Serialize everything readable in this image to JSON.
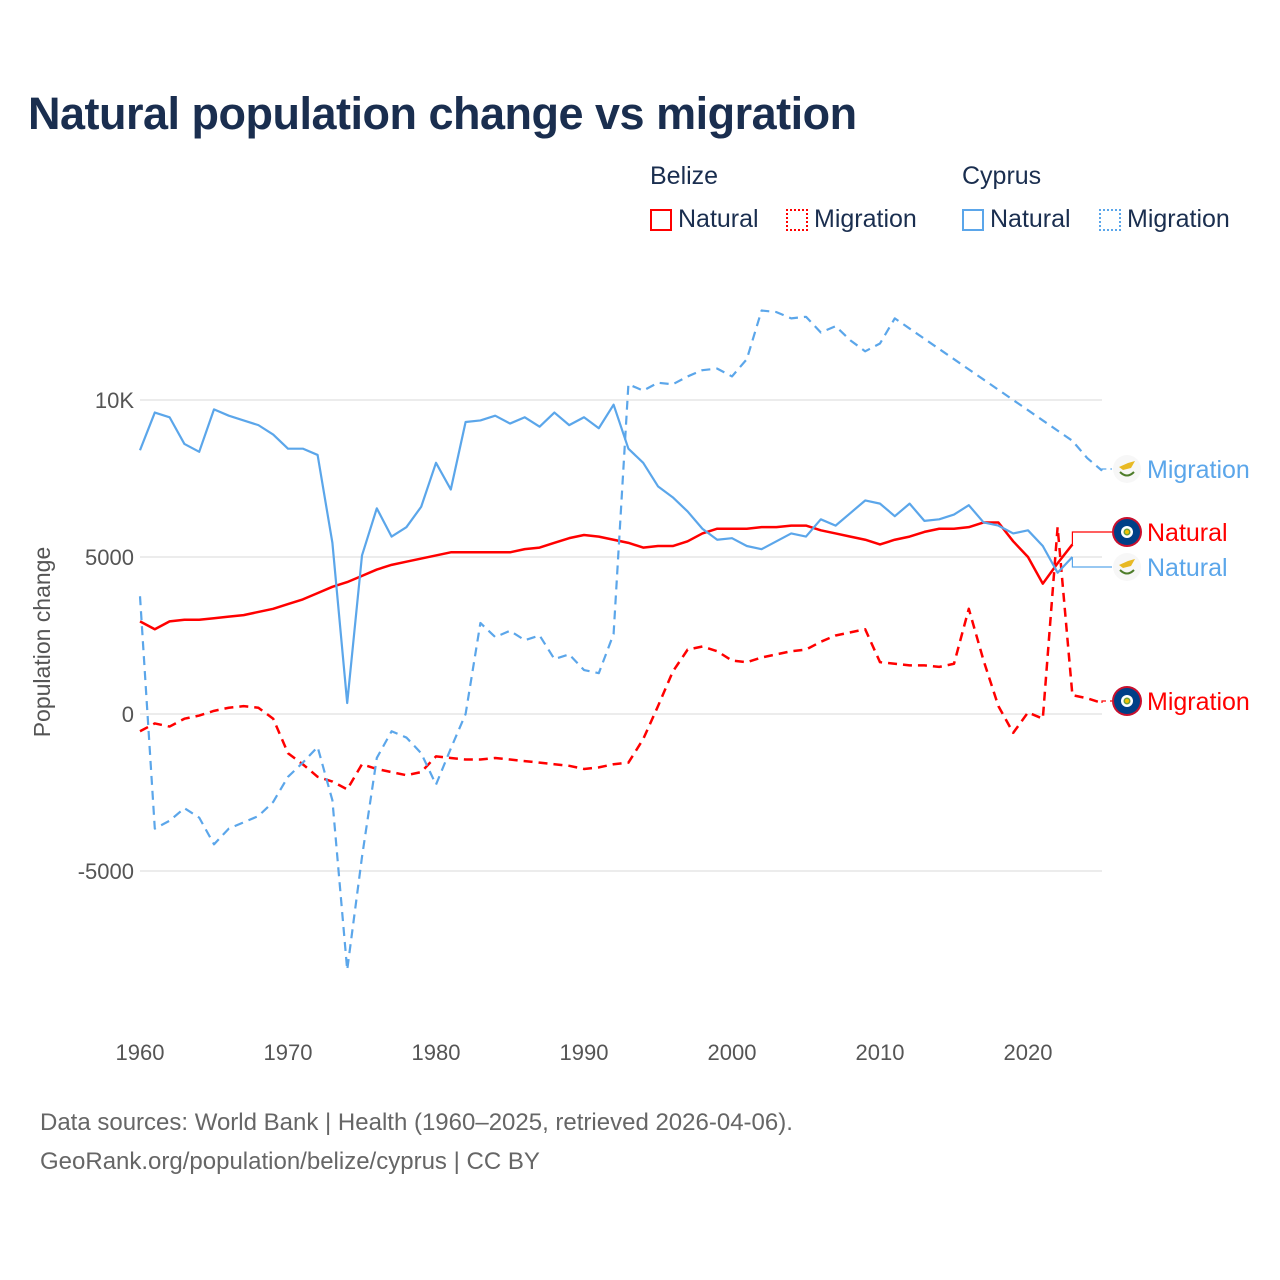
{
  "title": "Natural population change vs migration",
  "legend": {
    "groups": [
      {
        "country": "Belize",
        "items": [
          "Natural",
          "Migration"
        ]
      },
      {
        "country": "Cyprus",
        "items": [
          "Natural",
          "Migration"
        ]
      }
    ]
  },
  "footer": {
    "line1": "Data sources: World Bank | Health (1960–2025, retrieved 2026-04-06).",
    "line2": "GeoRank.org/population/belize/cyprus | CC BY"
  },
  "colors": {
    "belize": "#ff0000",
    "cyprus": "#5ba6ea"
  },
  "chart_data": {
    "type": "line",
    "title": "Natural population change vs migration",
    "xlabel": "",
    "ylabel": "Population change",
    "xlim": [
      1960,
      2025
    ],
    "ylim": [
      -9500,
      13500
    ],
    "x_ticks": [
      1960,
      1970,
      1980,
      1990,
      2000,
      2010,
      2020
    ],
    "x_tick_labels": [
      "1960",
      "1970",
      "1980",
      "1990",
      "2000",
      "2010",
      "2020"
    ],
    "y_ticks": [
      -5000,
      0,
      5000,
      10000
    ],
    "y_tick_labels": [
      "-5000",
      "0",
      "5000",
      "10K"
    ],
    "grid": true,
    "legend_position": "top-right",
    "series": [
      {
        "name": "Belize Natural",
        "country": "Belize",
        "kind": "Natural",
        "end_label": "Natural",
        "style": "solid",
        "start": 1960,
        "values": [
          2950,
          2700,
          2950,
          3000,
          3000,
          3050,
          3100,
          3150,
          3250,
          3350,
          3500,
          3650,
          3850,
          4050,
          4200,
          4400,
          4600,
          4750,
          4850,
          4950,
          5050,
          5150,
          5150,
          5150,
          5150,
          5150,
          5250,
          5300,
          5450,
          5600,
          5700,
          5650,
          5550,
          5450,
          5300,
          5350,
          5350,
          5500,
          5750,
          5900,
          5900,
          5900,
          5950,
          5950,
          6000,
          6000,
          5850,
          5750,
          5650,
          5550,
          5400,
          5550,
          5650,
          5800,
          5900,
          5900,
          5950,
          6100,
          6100,
          5500,
          5000,
          4150,
          4800,
          5400
        ]
      },
      {
        "name": "Belize Migration",
        "country": "Belize",
        "kind": "Migration",
        "end_label": "Migration",
        "style": "dashed",
        "start": 1960,
        "values": [
          -550,
          -300,
          -400,
          -150,
          -50,
          100,
          200,
          250,
          200,
          -150,
          -1250,
          -1600,
          -2000,
          -2150,
          -2400,
          -1600,
          -1750,
          -1850,
          -1950,
          -1850,
          -1350,
          -1400,
          -1450,
          -1450,
          -1400,
          -1450,
          -1500,
          -1550,
          -1600,
          -1650,
          -1750,
          -1700,
          -1600,
          -1550,
          -800,
          250,
          1350,
          2050,
          2150,
          2000,
          1700,
          1650,
          1800,
          1900,
          2000,
          2050,
          2300,
          2500,
          2600,
          2700,
          1650,
          1600,
          1550,
          1550,
          1500,
          1600,
          3350,
          1700,
          250,
          -600,
          50,
          -150,
          5950,
          600,
          500,
          350
        ]
      },
      {
        "name": "Cyprus Natural",
        "country": "Cyprus",
        "kind": "Natural",
        "end_label": "Natural",
        "style": "solid",
        "start": 1960,
        "values": [
          8400,
          9600,
          9450,
          8600,
          8350,
          9700,
          9500,
          9350,
          9200,
          8900,
          8450,
          8450,
          8250,
          5450,
          350,
          5050,
          6550,
          5650,
          5950,
          6600,
          8000,
          7150,
          9300,
          9350,
          9500,
          9250,
          9450,
          9150,
          9600,
          9200,
          9450,
          9100,
          9850,
          8450,
          8000,
          7250,
          6900,
          6450,
          5900,
          5550,
          5600,
          5350,
          5250,
          5500,
          5750,
          5650,
          6200,
          6000,
          6400,
          6800,
          6700,
          6300,
          6700,
          6150,
          6200,
          6350,
          6650,
          6100,
          6000,
          5750,
          5850,
          5350,
          4500,
          5000
        ]
      },
      {
        "name": "Cyprus Migration",
        "country": "Cyprus",
        "kind": "Migration",
        "end_label": "Migration",
        "style": "dashed",
        "start": 1960,
        "values": [
          3750,
          -3650,
          -3400,
          -3000,
          -3300,
          -4150,
          -3650,
          -3450,
          -3250,
          -2800,
          -2000,
          -1550,
          -1050,
          -2750,
          -8150,
          -4550,
          -1400,
          -550,
          -750,
          -1250,
          -2250,
          -1100,
          0,
          2900,
          2450,
          2650,
          2350,
          2500,
          1750,
          1900,
          1400,
          1300,
          2550,
          10500,
          10300,
          10550,
          10500,
          10750,
          10950,
          11000,
          10750,
          11300,
          12850,
          12800,
          12600,
          12650,
          12150,
          12350,
          11900,
          11550,
          11800,
          12600,
          12275,
          11950,
          11625,
          11300,
          10975,
          10650,
          10325,
          10000,
          9675,
          9350,
          9025,
          8700,
          8150,
          7750
        ]
      }
    ]
  }
}
